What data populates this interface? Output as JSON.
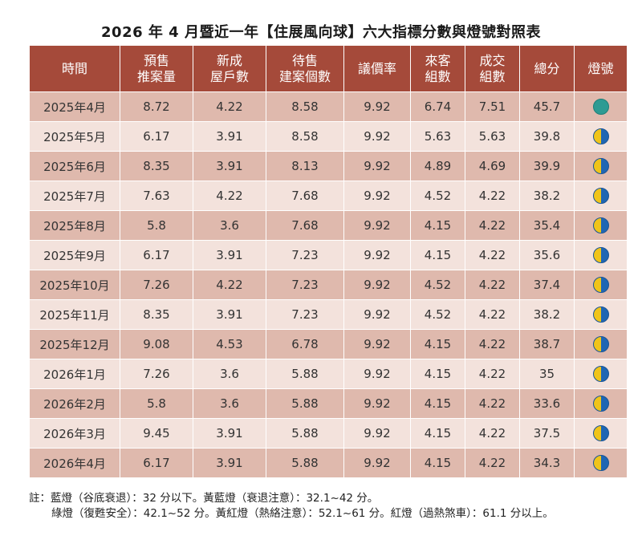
{
  "title": "2026 年 4 月暨近一年【住展風向球】六大指標分數與燈號對照表",
  "headers": [
    [
      "時間"
    ],
    [
      "預售",
      "推案量"
    ],
    [
      "新成",
      "屋戶數"
    ],
    [
      "待售",
      "建案個數"
    ],
    [
      "議價率"
    ],
    [
      "來客",
      "組數"
    ],
    [
      "成交",
      "組數"
    ],
    [
      "總分"
    ],
    [
      "燈號"
    ]
  ],
  "rows": [
    {
      "period": "2025年4月",
      "presale": "8.72",
      "new_units": "4.22",
      "pending": "8.58",
      "bargain": "9.92",
      "visitors": "6.74",
      "deals": "7.51",
      "total": "45.7",
      "light": "green"
    },
    {
      "period": "2025年5月",
      "presale": "6.17",
      "new_units": "3.91",
      "pending": "8.58",
      "bargain": "9.92",
      "visitors": "5.63",
      "deals": "5.63",
      "total": "39.8",
      "light": "yellow-blue"
    },
    {
      "period": "2025年6月",
      "presale": "8.35",
      "new_units": "3.91",
      "pending": "8.13",
      "bargain": "9.92",
      "visitors": "4.89",
      "deals": "4.69",
      "total": "39.9",
      "light": "yellow-blue"
    },
    {
      "period": "2025年7月",
      "presale": "7.63",
      "new_units": "4.22",
      "pending": "7.68",
      "bargain": "9.92",
      "visitors": "4.52",
      "deals": "4.22",
      "total": "38.2",
      "light": "yellow-blue"
    },
    {
      "period": "2025年8月",
      "presale": "5.8",
      "new_units": "3.6",
      "pending": "7.68",
      "bargain": "9.92",
      "visitors": "4.15",
      "deals": "4.22",
      "total": "35.4",
      "light": "yellow-blue"
    },
    {
      "period": "2025年9月",
      "presale": "6.17",
      "new_units": "3.91",
      "pending": "7.23",
      "bargain": "9.92",
      "visitors": "4.15",
      "deals": "4.22",
      "total": "35.6",
      "light": "yellow-blue"
    },
    {
      "period": "2025年10月",
      "presale": "7.26",
      "new_units": "4.22",
      "pending": "7.23",
      "bargain": "9.92",
      "visitors": "4.52",
      "deals": "4.22",
      "total": "37.4",
      "light": "yellow-blue"
    },
    {
      "period": "2025年11月",
      "presale": "8.35",
      "new_units": "3.91",
      "pending": "7.23",
      "bargain": "9.92",
      "visitors": "4.52",
      "deals": "4.22",
      "total": "38.2",
      "light": "yellow-blue"
    },
    {
      "period": "2025年12月",
      "presale": "9.08",
      "new_units": "4.53",
      "pending": "6.78",
      "bargain": "9.92",
      "visitors": "4.15",
      "deals": "4.22",
      "total": "38.7",
      "light": "yellow-blue"
    },
    {
      "period": "2026年1月",
      "presale": "7.26",
      "new_units": "3.6",
      "pending": "5.88",
      "bargain": "9.92",
      "visitors": "4.15",
      "deals": "4.22",
      "total": "35",
      "light": "yellow-blue"
    },
    {
      "period": "2026年2月",
      "presale": "5.8",
      "new_units": "3.6",
      "pending": "5.88",
      "bargain": "9.92",
      "visitors": "4.15",
      "deals": "4.22",
      "total": "33.6",
      "light": "yellow-blue"
    },
    {
      "period": "2026年3月",
      "presale": "9.45",
      "new_units": "3.91",
      "pending": "5.88",
      "bargain": "9.92",
      "visitors": "4.15",
      "deals": "4.22",
      "total": "37.5",
      "light": "yellow-blue"
    },
    {
      "period": "2026年4月",
      "presale": "6.17",
      "new_units": "3.91",
      "pending": "5.88",
      "bargain": "9.92",
      "visitors": "4.15",
      "deals": "4.22",
      "total": "34.3",
      "light": "yellow-blue"
    }
  ],
  "notes": [
    "註：藍燈（谷底衰退）：32 分以下。黃藍燈（衰退注意）：32.1~42 分。",
    "綠燈（復甦安全）：42.1~52 分。黃紅燈（熱絡注意）：52.1~61 分。紅燈（過熱煞車）：61.1 分以上。"
  ],
  "colors": {
    "header_bg": "#a54a3a",
    "row_dark": "#dfb9ad",
    "row_light": "#f3e2dc",
    "green_light": "#2e9b93",
    "yellow": "#f0c419",
    "blue": "#1f66b3"
  }
}
